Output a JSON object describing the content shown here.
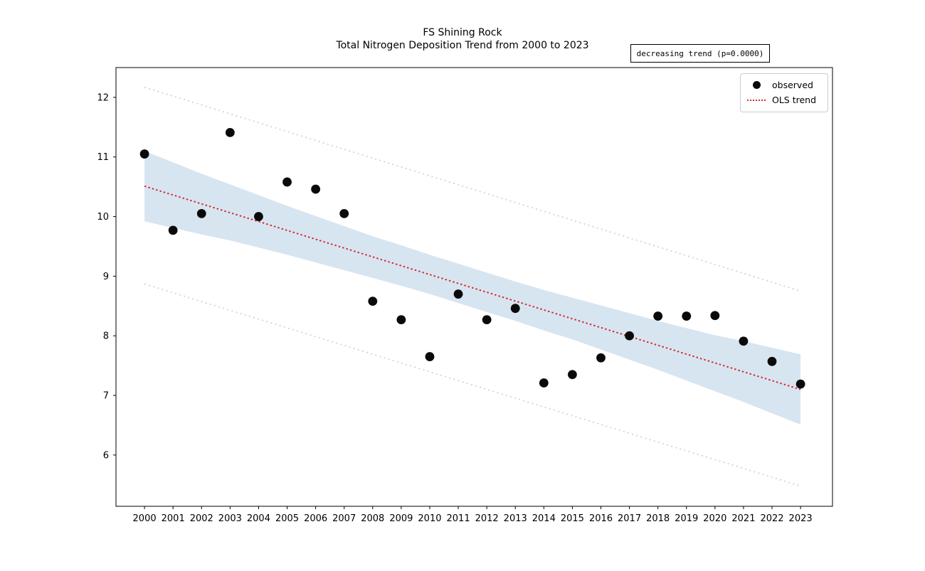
{
  "figure": {
    "title_line1": "FS Shining Rock",
    "title_line2": "Total Nitrogen Deposition Trend from 2000 to 2023",
    "annotation": "decreasing trend (p=0.0000)"
  },
  "legend": {
    "observed_label": "observed",
    "trend_label": "OLS trend"
  },
  "colors": {
    "background": "#ffffff",
    "axis": "#000000",
    "tick_label": "#000000",
    "marker": "#0a0a0a",
    "trend": "#d62728",
    "ci_band": "#d7e5f1",
    "pi_line": "#c7d8ec"
  },
  "chart_data": {
    "type": "scatter",
    "title": "FS Shining Rock",
    "subtitle": "Total Nitrogen Deposition Trend from 2000 to 2023",
    "xlabel": "",
    "ylabel": "",
    "grid": false,
    "legend_position": "upper right",
    "xlim": [
      1999.0,
      2024.12
    ],
    "ylim": [
      5.14,
      12.5
    ],
    "xticks": [
      2000,
      2001,
      2002,
      2003,
      2004,
      2005,
      2006,
      2007,
      2008,
      2009,
      2010,
      2011,
      2012,
      2013,
      2014,
      2015,
      2016,
      2017,
      2018,
      2019,
      2020,
      2021,
      2022,
      2023
    ],
    "yticks": [
      6,
      7,
      8,
      9,
      10,
      11,
      12
    ],
    "x": [
      2000,
      2001,
      2002,
      2003,
      2004,
      2005,
      2006,
      2007,
      2008,
      2009,
      2010,
      2011,
      2012,
      2013,
      2014,
      2015,
      2016,
      2017,
      2018,
      2019,
      2020,
      2021,
      2022,
      2023
    ],
    "series": [
      {
        "name": "observed",
        "kind": "scatter",
        "values": [
          11.05,
          9.77,
          10.05,
          11.41,
          10.0,
          10.58,
          10.46,
          10.05,
          8.58,
          8.27,
          7.65,
          8.7,
          8.27,
          8.46,
          7.21,
          7.35,
          7.63,
          8.0,
          8.33,
          8.33,
          8.34,
          7.91,
          7.57,
          7.19
        ]
      },
      {
        "name": "OLS trend",
        "kind": "dotted-line",
        "values": [
          10.51,
          10.36,
          10.21,
          10.07,
          9.92,
          9.77,
          9.62,
          9.47,
          9.32,
          9.18,
          9.03,
          8.88,
          8.73,
          8.58,
          8.43,
          8.29,
          8.14,
          7.99,
          7.84,
          7.69,
          7.54,
          7.4,
          7.25,
          7.1
        ]
      },
      {
        "name": "confidence band upper",
        "kind": "band-edge",
        "values": [
          11.1,
          10.91,
          10.72,
          10.54,
          10.36,
          10.18,
          10.01,
          9.84,
          9.67,
          9.52,
          9.36,
          9.21,
          9.06,
          8.91,
          8.77,
          8.64,
          8.51,
          8.38,
          8.25,
          8.13,
          8.01,
          7.91,
          7.8,
          7.69
        ]
      },
      {
        "name": "confidence band lower",
        "kind": "band-edge",
        "values": [
          9.92,
          9.81,
          9.7,
          9.6,
          9.48,
          9.36,
          9.23,
          9.1,
          8.97,
          8.84,
          8.7,
          8.55,
          8.4,
          8.25,
          8.09,
          7.94,
          7.77,
          7.6,
          7.43,
          7.25,
          7.07,
          6.89,
          6.7,
          6.51
        ]
      },
      {
        "name": "prediction interval upper",
        "kind": "dotted-line",
        "x": [
          2000,
          2023
        ],
        "values": [
          12.17,
          8.75
        ]
      },
      {
        "name": "prediction interval lower",
        "kind": "dotted-line",
        "x": [
          2000,
          2023
        ],
        "values": [
          8.87,
          5.48
        ]
      }
    ]
  }
}
